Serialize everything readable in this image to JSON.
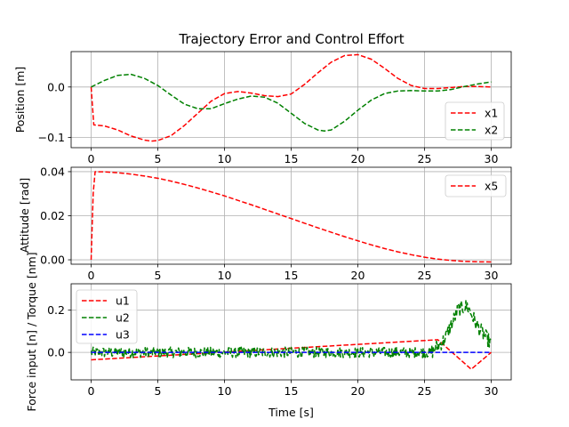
{
  "title": "Trajectory Error and Control Effort",
  "colors": {
    "red": "#ff0000",
    "green": "#008000",
    "blue": "#0000ff",
    "grid": "#b0b0b0"
  },
  "chart_data": [
    {
      "type": "line",
      "ylabel": "Position [m]",
      "xlim": [
        -1.5,
        31.5
      ],
      "ylim": [
        -0.12,
        0.07
      ],
      "xticks": [
        0,
        5,
        10,
        15,
        20,
        25,
        30
      ],
      "yticks": [
        -0.1,
        0.0
      ],
      "ytick_labels": [
        "−0.1",
        "0.0"
      ],
      "grid": true,
      "legend": "right",
      "series": [
        {
          "name": "x1",
          "color": "#ff0000",
          "style": "dashed",
          "x": [
            0,
            0.2,
            1,
            2,
            3,
            4,
            4.5,
            5,
            6,
            7,
            8,
            9,
            10,
            11,
            12,
            13,
            14,
            15,
            16,
            17,
            18,
            19,
            20,
            21,
            22,
            23,
            24,
            25,
            26,
            27,
            28,
            29,
            30
          ],
          "y": [
            0,
            -0.075,
            -0.077,
            -0.085,
            -0.097,
            -0.105,
            -0.107,
            -0.106,
            -0.096,
            -0.076,
            -0.052,
            -0.028,
            -0.013,
            -0.009,
            -0.012,
            -0.017,
            -0.019,
            -0.014,
            0.005,
            0.028,
            0.049,
            0.062,
            0.064,
            0.055,
            0.037,
            0.017,
            0.003,
            -0.003,
            -0.003,
            -0.001,
            0.001,
            0.001,
            0
          ]
        },
        {
          "name": "x2",
          "color": "#008000",
          "style": "dashed",
          "x": [
            0,
            1,
            2,
            3,
            4,
            5,
            6,
            7,
            8,
            9,
            10,
            11,
            12,
            13,
            14,
            15,
            16,
            17,
            17.5,
            18,
            19,
            20,
            21,
            22,
            23,
            24,
            25,
            26,
            27,
            28,
            29,
            30
          ],
          "y": [
            0,
            0.013,
            0.023,
            0.025,
            0.017,
            0.003,
            -0.016,
            -0.034,
            -0.043,
            -0.043,
            -0.033,
            -0.024,
            -0.018,
            -0.02,
            -0.032,
            -0.052,
            -0.072,
            -0.085,
            -0.087,
            -0.085,
            -0.068,
            -0.046,
            -0.026,
            -0.013,
            -0.008,
            -0.007,
            -0.008,
            -0.008,
            -0.005,
            0.001,
            0.006,
            0.01
          ]
        }
      ]
    },
    {
      "type": "line",
      "ylabel": "Attitude [rad]",
      "xlim": [
        -1.5,
        31.5
      ],
      "ylim": [
        -0.002,
        0.042
      ],
      "xticks": [
        0,
        5,
        10,
        15,
        20,
        25,
        30
      ],
      "yticks": [
        0.0,
        0.02,
        0.04
      ],
      "ytick_labels": [
        "0.00",
        "0.02",
        "0.04"
      ],
      "grid": true,
      "legend": "upper right",
      "series": [
        {
          "name": "x5",
          "color": "#ff0000",
          "style": "dashed",
          "x": [
            0,
            0.15,
            0.3,
            1,
            2,
            3,
            4,
            5,
            6,
            7,
            8,
            9,
            10,
            11,
            12,
            13,
            14,
            15,
            16,
            17,
            18,
            19,
            20,
            21,
            22,
            23,
            24,
            25,
            26,
            27,
            28,
            29,
            30
          ],
          "y": [
            0,
            0.03,
            0.04,
            0.0399,
            0.0395,
            0.0389,
            0.038,
            0.037,
            0.0357,
            0.0342,
            0.0326,
            0.0308,
            0.029,
            0.027,
            0.025,
            0.0229,
            0.0208,
            0.0187,
            0.0166,
            0.0145,
            0.0125,
            0.0105,
            0.0086,
            0.0068,
            0.0051,
            0.0036,
            0.0023,
            0.0012,
            0.0003,
            -0.0003,
            -0.0007,
            -0.0009,
            -0.001
          ]
        }
      ]
    },
    {
      "type": "line",
      "ylabel": "Force input [n] / Torque [nm]",
      "xlabel": "Time [s]",
      "xlim": [
        -1.5,
        31.5
      ],
      "ylim": [
        -0.13,
        0.325
      ],
      "xticks": [
        0,
        5,
        10,
        15,
        20,
        25,
        30
      ],
      "yticks": [
        0.0,
        0.2
      ],
      "ytick_labels": [
        "0.0",
        "0.2"
      ],
      "grid": true,
      "legend": "upper left",
      "series": [
        {
          "name": "u1",
          "color": "#ff0000",
          "style": "dashed",
          "x": [
            0,
            26,
            28.5,
            30
          ],
          "y": [
            -0.035,
            0.06,
            -0.08,
            0
          ]
        },
        {
          "name": "u2",
          "color": "#008000",
          "style": "dashed",
          "noise": 0.025,
          "x": [
            0,
            25.5,
            26.5,
            27.5,
            28.2,
            29,
            30
          ],
          "y": [
            0.0,
            0.0,
            0.06,
            0.2,
            0.22,
            0.12,
            0.04
          ]
        },
        {
          "name": "u3",
          "color": "#0000ff",
          "style": "dashed",
          "x": [
            0,
            30
          ],
          "y": [
            0.0,
            0.0
          ]
        }
      ]
    }
  ]
}
